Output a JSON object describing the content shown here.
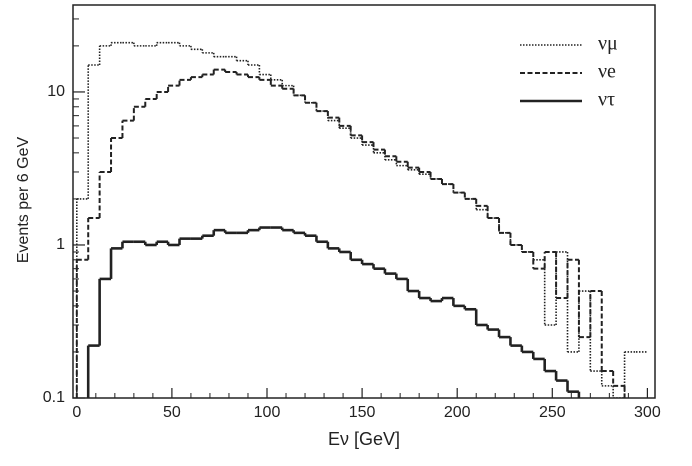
{
  "chart_data": {
    "type": "histogram",
    "x_label": "Eν [GeV]",
    "y_label": "Events per 6 GeV",
    "log_y": true,
    "xlim": [
      -2,
      304
    ],
    "ylim": [
      0.1,
      37
    ],
    "xticks": [
      0,
      50,
      100,
      150,
      200,
      250,
      300
    ],
    "xminorticks": [
      10,
      20,
      30,
      40,
      60,
      70,
      80,
      90,
      110,
      120,
      130,
      140,
      160,
      170,
      180,
      190,
      210,
      220,
      230,
      240,
      260,
      270,
      280,
      290
    ],
    "yticks": [
      0.1,
      1,
      10
    ],
    "yminorticks": [
      0.2,
      0.3,
      0.4,
      0.5,
      0.6,
      0.7,
      0.8,
      0.9,
      2,
      3,
      4,
      5,
      6,
      7,
      8,
      9,
      20,
      30
    ],
    "legend": "upper right",
    "bins": [
      0,
      6,
      12,
      18,
      24,
      30,
      36,
      42,
      48,
      54,
      60,
      66,
      72,
      78,
      84,
      90,
      96,
      102,
      108,
      114,
      120,
      126,
      132,
      138,
      144,
      150,
      156,
      162,
      168,
      174,
      180,
      186,
      192,
      198,
      204,
      210,
      216,
      222,
      228,
      234,
      240,
      246,
      252,
      258,
      264,
      270,
      276,
      282,
      288,
      294,
      300
    ],
    "series": [
      {
        "name": "νμ",
        "color": "#222222",
        "style": "dotted",
        "values": [
          2,
          15,
          20,
          21,
          21,
          20,
          20,
          21,
          21,
          20,
          19,
          18,
          17,
          17,
          16,
          15,
          13,
          12,
          11,
          9.5,
          8.5,
          7.5,
          6.5,
          5.8,
          5,
          4.5,
          4,
          3.6,
          3.3,
          3.1,
          2.9,
          2.7,
          2.5,
          2.2,
          2,
          1.7,
          1.5,
          1.2,
          1,
          0.9,
          0.8,
          0.3,
          0.9,
          0.2,
          0.5,
          0.15,
          0.12,
          0.1,
          0.2,
          0.2
        ]
      },
      {
        "name": "νe",
        "color": "#222222",
        "style": "dashed",
        "values": [
          0.8,
          1.5,
          3,
          5,
          6.5,
          8,
          9,
          10,
          11,
          12,
          12.5,
          13,
          14,
          13.5,
          13,
          12.5,
          12,
          11,
          10.5,
          9.5,
          8.5,
          7.5,
          6.8,
          6,
          5.2,
          4.7,
          4.2,
          3.8,
          3.5,
          3.2,
          3,
          2.7,
          2.5,
          2.2,
          2,
          1.8,
          1.5,
          1.2,
          1,
          0.9,
          0.7,
          0.9,
          0.45,
          0.8,
          0.25,
          0.5,
          0.15,
          0.12,
          null,
          null
        ]
      },
      {
        "name": "ντ",
        "color": "#222222",
        "style": "solid",
        "values": [
          null,
          0.22,
          0.6,
          0.95,
          1.05,
          1.05,
          1,
          1.05,
          1,
          1.1,
          1.1,
          1.15,
          1.25,
          1.2,
          1.2,
          1.25,
          1.3,
          1.3,
          1.25,
          1.2,
          1.15,
          1.05,
          0.95,
          0.9,
          0.8,
          0.75,
          0.7,
          0.65,
          0.6,
          0.5,
          0.45,
          0.43,
          0.45,
          0.4,
          0.38,
          0.3,
          0.28,
          0.25,
          0.22,
          0.2,
          0.18,
          0.15,
          0.13,
          0.11,
          null,
          null,
          null,
          null,
          null,
          null
        ]
      }
    ]
  }
}
